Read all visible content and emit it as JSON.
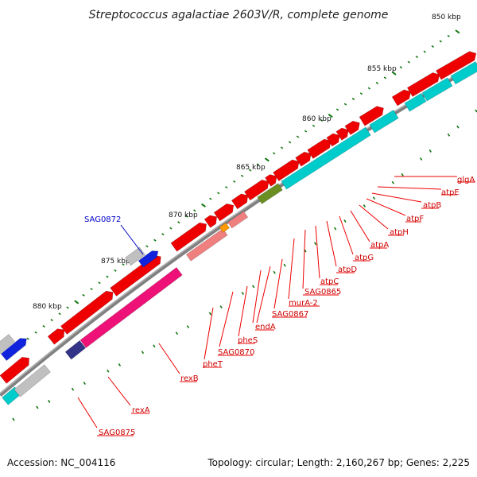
{
  "title": "Streptococcus agalactiae 2603V/R, complete genome",
  "footer": {
    "accession": "Accession: NC_004116",
    "topology": "Topology: circular; Length: 2,160,267 bp; Genes: 2,225"
  },
  "scale_labels": [
    "850 kbp",
    "855 kbp",
    "860 kbp",
    "865 kbp",
    "870 kbp",
    "875 kbp",
    "880 kbp"
  ],
  "gene_labels": [
    {
      "name": "glgA",
      "color": "#cc0000"
    },
    {
      "name": "atpE",
      "color": "#cc0000"
    },
    {
      "name": "atpB",
      "color": "#cc0000"
    },
    {
      "name": "atpF",
      "color": "#cc0000"
    },
    {
      "name": "atpH",
      "color": "#cc0000"
    },
    {
      "name": "atpA",
      "color": "#cc0000"
    },
    {
      "name": "atpG",
      "color": "#cc0000"
    },
    {
      "name": "atpD",
      "color": "#cc0000"
    },
    {
      "name": "atpC",
      "color": "#cc0000"
    },
    {
      "name": "SAG0865",
      "color": "#cc0000"
    },
    {
      "name": "murA-2",
      "color": "#cc0000"
    },
    {
      "name": "SAG0867",
      "color": "#cc0000"
    },
    {
      "name": "endA",
      "color": "#cc0000"
    },
    {
      "name": "pheS",
      "color": "#cc0000"
    },
    {
      "name": "SAG0870",
      "color": "#cc0000"
    },
    {
      "name": "pheT",
      "color": "#cc0000"
    },
    {
      "name": "rexB",
      "color": "#cc0000"
    },
    {
      "name": "rexA",
      "color": "#cc0000"
    },
    {
      "name": "SAG0875",
      "color": "#cc0000"
    },
    {
      "name": "SAG0872",
      "color": "#0000cc"
    }
  ],
  "colors": {
    "backbone": "#808080",
    "cds": "#ee0000",
    "cds_light": "#f08080",
    "blast_cyan": "#00cccc",
    "blast_pink": "#ee1177",
    "rna_gray": "#c0c0c0",
    "rna_blue": "#1122dd",
    "olive": "#6b8e23",
    "orange": "#ff9900",
    "navy": "#333388",
    "tick_green": "#117711"
  }
}
